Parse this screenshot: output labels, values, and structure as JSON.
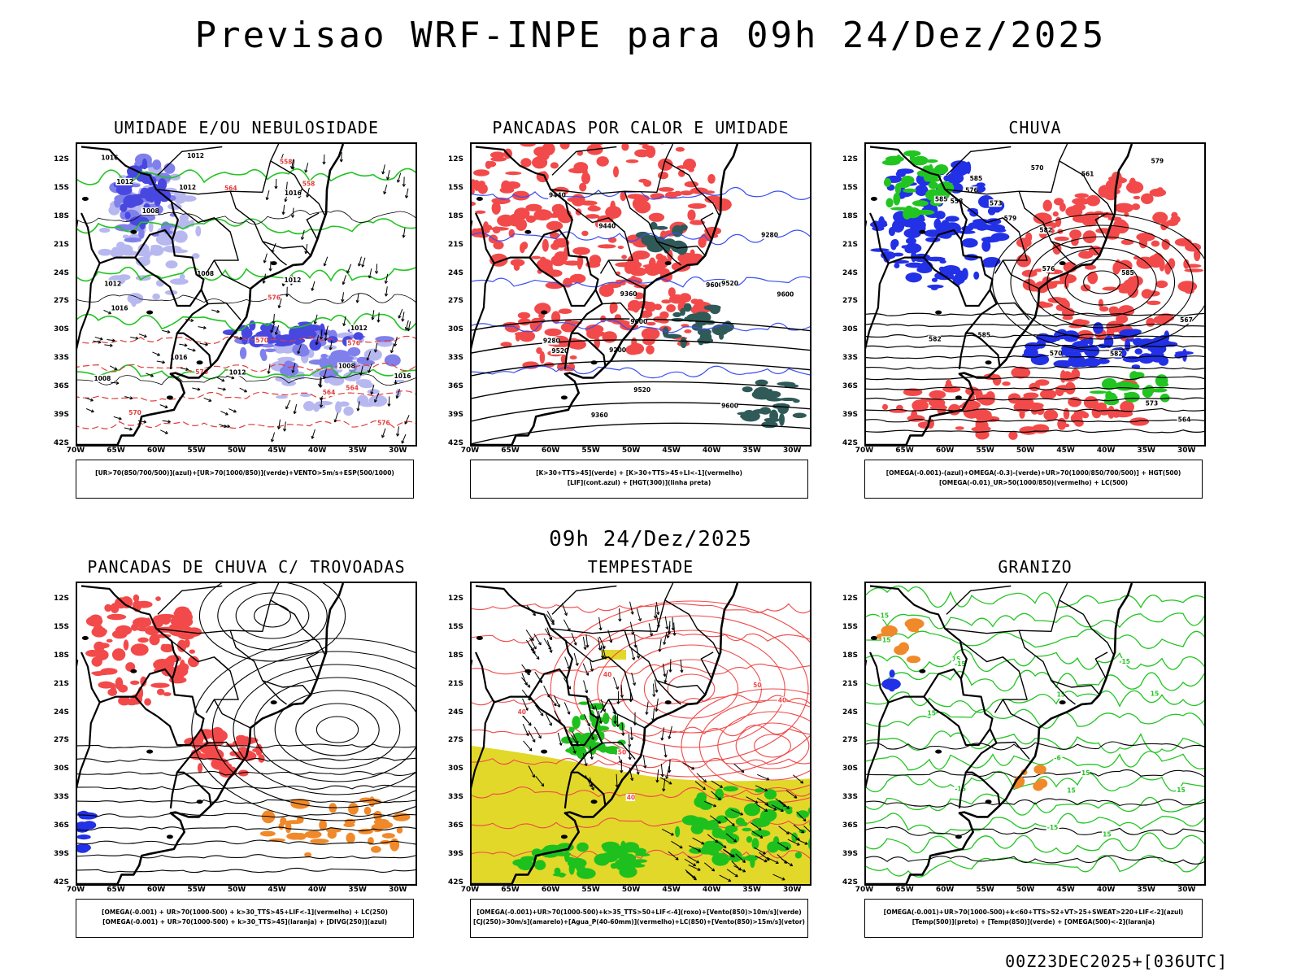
{
  "title": "Previsao WRF-INPE  para 09h 24/Dez/2025",
  "mid_title": "09h 24/Dez/2025",
  "footer": "00Z23DEC2025+[036UTC]",
  "lat_labels": [
    "12S",
    "15S",
    "18S",
    "21S",
    "24S",
    "27S",
    "30S",
    "33S",
    "36S",
    "39S",
    "42S"
  ],
  "lon_labels": [
    "70W",
    "65W",
    "60W",
    "55W",
    "50W",
    "45W",
    "40W",
    "35W",
    "30W"
  ],
  "panels": [
    {
      "title": "UMIDADE E/OU NEBULOSIDADE",
      "legend": [
        "[UR>70(850/700/500)](azul)+[UR>70(1000/850)](verde)+VENTO>5m/s+ESP(500/1000)"
      ],
      "contour_labels": [
        "1012",
        "1012",
        "1012",
        "1008",
        "1016",
        "1016",
        "1016",
        "1016",
        "1012",
        "1008",
        "1012",
        "1008",
        "1016",
        "1008",
        "1012",
        "1012",
        "570",
        "576",
        "576",
        "570",
        "564",
        "558",
        "564",
        "558",
        "564",
        "570",
        "576"
      ],
      "colors": {
        "blue_light": "#b8b8f0",
        "blue_mid": "#8080ea",
        "blue_dark": "#4848e0",
        "green": "#22c422",
        "red": "#e33b3b"
      }
    },
    {
      "title": "PANCADAS POR CALOR E UMIDADE",
      "legend": [
        "[K>30+TTS>45](verde) + [K>30+TTS>45+LI<-1](vermelho)",
        "[LIF](cont.azul) + [HGT(300)](linha preta)"
      ],
      "contour_labels": [
        "9600",
        "9600",
        "9520",
        "9600",
        "9520",
        "9440",
        "9360",
        "9280",
        "9200",
        "9600",
        "9520",
        "9440",
        "9360",
        "9280"
      ],
      "colors": {
        "red": "#f24a4a",
        "dark_green": "#2f5a58",
        "blue": "#3a4ef0"
      }
    },
    {
      "title": "CHUVA",
      "legend": [
        "[OMEGA(-0.001)-(azul)+OMEGA(-0.3)-(verde)+UR>70(1000/850/700/500)] + HGT(500)",
        "[OMEGA(-0.01)_UR>50(1000/850)(vermelho) + LC(500)"
      ],
      "contour_labels": [
        "582",
        "582",
        "585",
        "585",
        "585",
        "585",
        "582",
        "579",
        "576",
        "573",
        "570",
        "567",
        "564",
        "561",
        "558",
        "579",
        "576",
        "573",
        "570"
      ],
      "colors": {
        "red": "#f24a4a",
        "blue": "#2230e6",
        "green": "#22c422"
      }
    },
    {
      "title": "PANCADAS DE CHUVA C/ TROVOADAS",
      "legend": [
        "[OMEGA(-0.001) + UR>70(1000-500) + k>30_TTS>45+LIF<-1](vermelho) + LC(250)",
        "[OMEGA(-0.001) + UR>70(1000-500) + k>30_TTS>45](laranja) + [DIVG(250)](azul)"
      ],
      "contour_labels": [],
      "colors": {
        "red": "#f24a4a",
        "orange": "#f0892a",
        "blue": "#2230e6"
      }
    },
    {
      "title": "TEMPESTADE",
      "legend": [
        "[OMEGA(-0.001)+UR>70(1000-500)+k>35_TTS>50+LIF<-4](roxo)+[Vento(850)>10m/s](verde)",
        "[CJ(250)>30m/s](amarelo)+[Agua_P(40-60mm)](vermelho)+LC(850)+[Vento(850)>15m/s](vetor)"
      ],
      "contour_labels": [
        "40",
        "50",
        "40",
        "50",
        "40",
        "40"
      ],
      "colors": {
        "yellow": "#e2d82a",
        "red": "#f04848",
        "green": "#1ec01e"
      }
    },
    {
      "title": "GRANIZO",
      "legend": [
        "[OMEGA(-0.001)+UR>70(1000-500)+k<60+TTS>52+VT>25+SWEAT>220+LIF<-2](azul)",
        "[Temp(500)](preto) + [Temp(850)](verde) + [OMEGA(500)<-2](laranja)"
      ],
      "contour_labels": [
        "15",
        "15",
        "15",
        "15",
        "15",
        "-15",
        "-15",
        "-15",
        "-15",
        "-6",
        "15",
        "15",
        "15",
        "15",
        "15"
      ],
      "colors": {
        "green": "#22c422",
        "orange": "#f0892a",
        "blue": "#2230e6"
      }
    }
  ]
}
